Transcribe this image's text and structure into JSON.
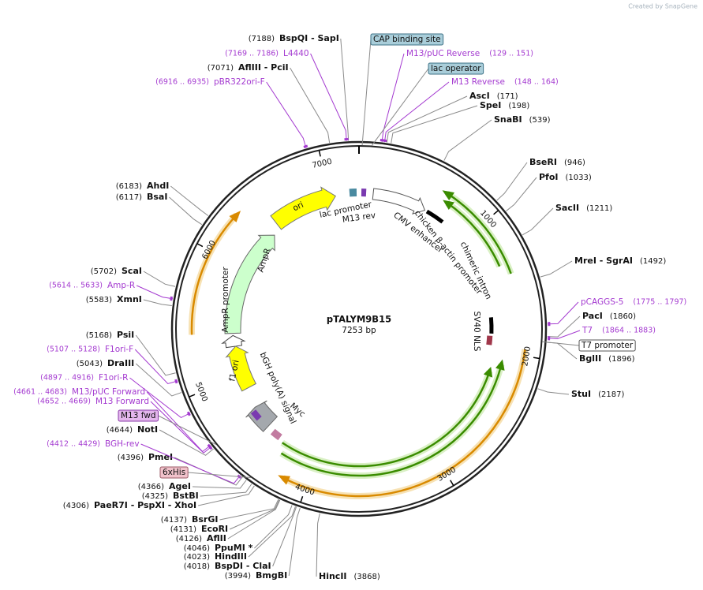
{
  "header": {
    "credit": "Created by SnapGene"
  },
  "map": {
    "name": "pTALYM9B15",
    "length": "7253 bp"
  },
  "ticks": [
    "1000",
    "2000",
    "3000",
    "4000",
    "5000",
    "6000",
    "7000"
  ],
  "enzymes": [
    {
      "name": "BspQI  - SapI",
      "position": "(7188)"
    },
    {
      "name": "AflIII  - PciI",
      "position": "(7071)"
    },
    {
      "name": "AhdI",
      "position": "(6183)"
    },
    {
      "name": "BsaI",
      "position": "(6117)"
    },
    {
      "name": "ScaI",
      "position": "(5702)"
    },
    {
      "name": "XmnI",
      "position": "(5583)"
    },
    {
      "name": "PsiI",
      "position": "(5168)"
    },
    {
      "name": "DraIII",
      "position": "(5043)"
    },
    {
      "name": "NotI",
      "position": "(4644)"
    },
    {
      "name": "PmeI",
      "position": "(4396)"
    },
    {
      "name": "AgeI",
      "position": "(4366)"
    },
    {
      "name": "BstBI",
      "position": "(4325)"
    },
    {
      "name": "PaeR7I  - PspXI  - XhoI",
      "position": "(4306)"
    },
    {
      "name": "BsrGI",
      "position": "(4137)"
    },
    {
      "name": "EcoRI",
      "position": "(4131)"
    },
    {
      "name": "AflII",
      "position": "(4126)"
    },
    {
      "name": "PpuMI *",
      "position": "(4046)"
    },
    {
      "name": "HindIII",
      "position": "(4023)"
    },
    {
      "name": "BspDI  - ClaI",
      "position": "(4018)"
    },
    {
      "name": "BmgBI",
      "position": "(3994)"
    },
    {
      "name": "AscI",
      "position": "(171)"
    },
    {
      "name": "SpeI",
      "position": "(198)"
    },
    {
      "name": "SnaBI",
      "position": "(539)"
    },
    {
      "name": "BseRI",
      "position": "(946)"
    },
    {
      "name": "PfoI",
      "position": "(1033)"
    },
    {
      "name": "SacII",
      "position": "(1211)"
    },
    {
      "name": "MreI  - SgrAI",
      "position": "(1492)"
    },
    {
      "name": "PacI",
      "position": "(1860)"
    },
    {
      "name": "BglII",
      "position": "(1896)"
    },
    {
      "name": "StuI",
      "position": "(2187)"
    },
    {
      "name": "HincII",
      "position": "(3868)"
    }
  ],
  "primers": [
    {
      "name": "L4440",
      "range": "(7169 .. 7186)"
    },
    {
      "name": "pBR322ori-F",
      "range": "(6916 .. 6935)"
    },
    {
      "name": "Amp-R",
      "range": "(5614 .. 5633)"
    },
    {
      "name": "F1ori-F",
      "range": "(5107 .. 5128)"
    },
    {
      "name": "F1ori-R",
      "range": "(4897 .. 4916)"
    },
    {
      "name": "M13/pUC Forward",
      "range": "(4661 .. 4683)"
    },
    {
      "name": "M13 Forward",
      "range": "(4652 .. 4669)"
    },
    {
      "name": "BGH-rev",
      "range": "(4412 .. 4429)"
    },
    {
      "name": "M13/pUC Reverse",
      "range": "(129 .. 151)"
    },
    {
      "name": "M13 Reverse",
      "range": "(148 .. 164)"
    },
    {
      "name": "pCAGGS-5",
      "range": "(1775 .. 1797)"
    },
    {
      "name": "T7",
      "range": "(1864 .. 1883)"
    }
  ],
  "boxed_features": [
    "CAP binding site",
    "lac operator",
    "T7 promoter",
    "M13 fwd",
    "6xHis"
  ],
  "features": [
    "ori",
    "lac promoter",
    "M13 rev",
    "CMV enhancer",
    "chicken β-actin promoter",
    "chimeric intron",
    "SV40 NLS",
    "Myc",
    "bGH poly(A) signal",
    "f1 ori",
    "AmpR promoter",
    "AmpR"
  ]
}
